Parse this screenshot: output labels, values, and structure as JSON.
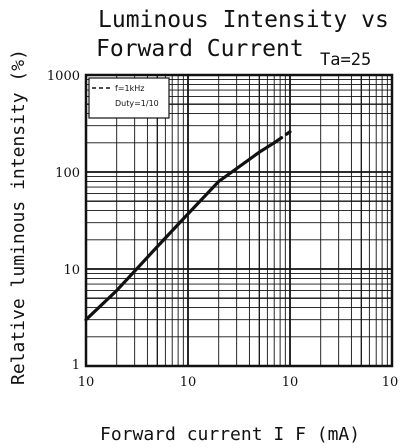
{
  "chart_data": {
    "type": "line",
    "title_line1": "Luminous Intensity vs",
    "title_line2": "Forward Current",
    "condition": "Ta=25",
    "xlabel": "Forward current I F (mA)",
    "ylabel": "Relative luminous intensity (%)",
    "xscale": "log",
    "yscale": "log",
    "xlim": [
      1,
      1000
    ],
    "ylim": [
      1,
      1000
    ],
    "x_ticks": [
      "10",
      "10",
      "10",
      "10"
    ],
    "y_ticks": [
      "1000",
      "100",
      "10",
      "1"
    ],
    "grid": true,
    "legend": {
      "lines": [
        "f=1kHz",
        "Duty=1/10"
      ],
      "placement": "top-left"
    },
    "series": [
      {
        "x": [
          1,
          2,
          5,
          10,
          20,
          50,
          70
        ],
        "y": [
          3,
          6,
          17,
          37,
          80,
          160,
          200
        ],
        "style": "solid"
      },
      {
        "x": [
          70,
          100
        ],
        "y": [
          200,
          260
        ],
        "style": "dashed"
      }
    ]
  }
}
